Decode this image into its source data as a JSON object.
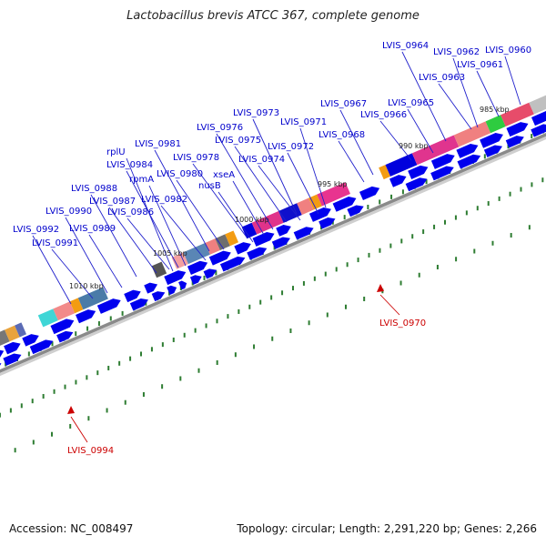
{
  "title": "Lactobacillus brevis ATCC 367, complete genome",
  "footer": {
    "accession": "Accession: NC_008497",
    "summary": "Topology: circular; Length: 2,291,220 bp; Genes: 2,266"
  },
  "colors": {
    "cds_blue": "#0000ee",
    "label_blue": "#0000cc",
    "label_red": "#cc0000",
    "tick_green": "#2e7d32",
    "backbone_gray": "#8a8a8a"
  },
  "scale_labels": [
    "1010 kbp",
    "1005 kbp",
    "1000 kbp",
    "995 kbp",
    "990 kbp",
    "985 kbp"
  ],
  "blue_labels": [
    "LVIS_0964",
    "LVIS_0962",
    "LVIS_0960",
    "LVIS_0961",
    "LVIS_0963",
    "LVIS_0967",
    "LVIS_0965",
    "LVIS_0966",
    "LVIS_0973",
    "LVIS_0971",
    "LVIS_0976",
    "LVIS_0968",
    "LVIS_0975",
    "LVIS_0972",
    "LVIS_0981",
    "rplU",
    "LVIS_0978",
    "LVIS_0974",
    "LVIS_0984",
    "xseA",
    "rpmA",
    "LVIS_0980",
    "nusB",
    "LVIS_0988",
    "LVIS_0987",
    "LVIS_0982",
    "LVIS_0990",
    "LVIS_0986",
    "LVIS_0992",
    "LVIS_0989",
    "LVIS_0991"
  ],
  "red_labels": [
    "LVIS_0970",
    "LVIS_0994"
  ]
}
